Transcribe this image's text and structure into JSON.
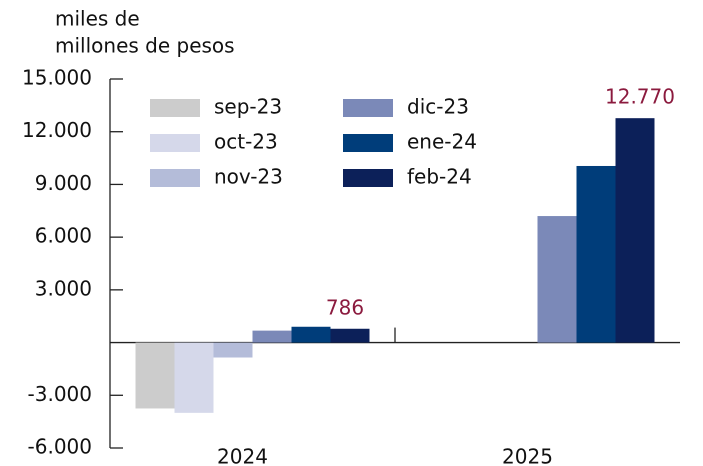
{
  "chart_data": {
    "type": "bar",
    "y_label": [
      "miles de",
      "millones de pesos"
    ],
    "categories": [
      "2024",
      "2025"
    ],
    "series": [
      {
        "name": "sep-23",
        "color": "#cccccc",
        "values": [
          -3750,
          null
        ]
      },
      {
        "name": "oct-23",
        "color": "#d5d8ea",
        "values": [
          -4000,
          null
        ]
      },
      {
        "name": "nov-23",
        "color": "#b4bcd9",
        "values": [
          -850,
          null
        ]
      },
      {
        "name": "dic-23",
        "color": "#7b89b8",
        "values": [
          680,
          7200
        ]
      },
      {
        "name": "ene-24",
        "color": "#003d7a",
        "values": [
          900,
          10050
        ]
      },
      {
        "name": "feb-24",
        "color": "#0c2059",
        "values": [
          786,
          12770
        ],
        "value_labels": [
          "786",
          "12.770"
        ],
        "label_color": "#8b1a3e"
      }
    ],
    "ylim": [
      -6000,
      15000
    ],
    "yticks": [
      {
        "value": -6000,
        "label": "-6.000"
      },
      {
        "value": -3000,
        "label": "-3.000"
      },
      {
        "value": 3000,
        "label": "3.000"
      },
      {
        "value": 6000,
        "label": "6.000"
      },
      {
        "value": 9000,
        "label": "9.000"
      },
      {
        "value": 12000,
        "label": "12.000"
      },
      {
        "value": 15000,
        "label": "15.000"
      }
    ]
  }
}
